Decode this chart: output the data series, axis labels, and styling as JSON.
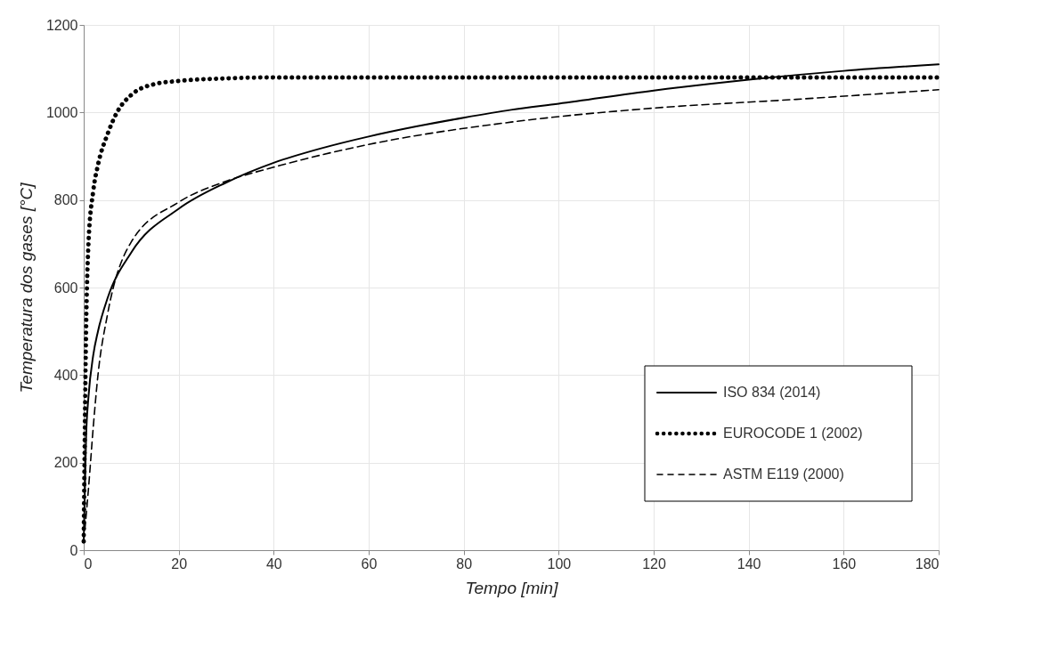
{
  "chart_data": {
    "type": "line",
    "xlabel": "Tempo [min]",
    "ylabel": "Temperatura dos gases [°C]",
    "xlim": [
      0,
      180
    ],
    "xticks": [
      0,
      20,
      40,
      60,
      80,
      100,
      120,
      140,
      160,
      180
    ],
    "ylim": [
      0,
      1200
    ],
    "yticks": [
      0,
      200,
      400,
      600,
      800,
      1000,
      1200
    ],
    "grid": true,
    "legend": "bottom right",
    "series": [
      {
        "name": "ISO 834 (2014)",
        "color": "#000000",
        "line_style": "solid",
        "x": [
          0,
          0.5,
          1,
          2,
          3,
          5,
          10,
          20,
          30,
          40,
          50,
          60,
          70,
          80,
          90,
          100,
          120,
          140,
          160,
          180
        ],
        "values": [
          20,
          260,
          350,
          445,
          500,
          575,
          680,
          780,
          840,
          885,
          918,
          945,
          968,
          988,
          1006,
          1020,
          1050,
          1075,
          1095,
          1110
        ]
      },
      {
        "name": "EUROCODE 1 (2002)",
        "color": "#000000",
        "line_style": "dotted",
        "x": [
          0,
          0.5,
          1,
          2,
          3,
          5,
          7,
          10,
          15,
          20,
          30,
          40,
          60,
          90,
          120,
          150,
          180
        ],
        "values": [
          20,
          500,
          700,
          820,
          880,
          950,
          1000,
          1040,
          1065,
          1072,
          1078,
          1080,
          1080,
          1080,
          1080,
          1080,
          1080
        ]
      },
      {
        "name": "ASTM E119 (2000)",
        "color": "#000000",
        "line_style": "dashed",
        "x": [
          0,
          1,
          2,
          3,
          5,
          10,
          20,
          30,
          40,
          60,
          90,
          120,
          150,
          180
        ],
        "values": [
          20,
          140,
          280,
          400,
          538,
          704,
          795,
          843,
          875,
          927,
          978,
          1010,
          1030,
          1052
        ]
      }
    ]
  }
}
